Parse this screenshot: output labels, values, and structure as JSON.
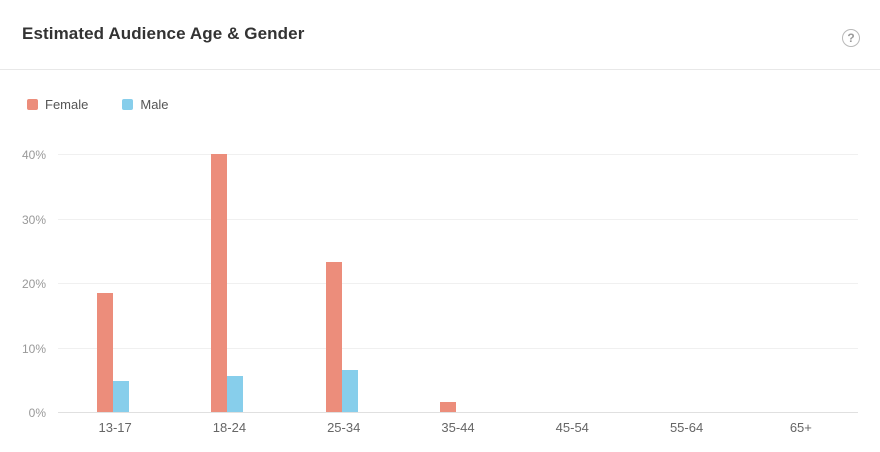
{
  "header": {
    "title": "Estimated Audience Age & Gender",
    "help_glyph": "?",
    "icons": {
      "help": "question-mark-circle-icon"
    }
  },
  "legend": [
    {
      "label": "Female",
      "color": "#ec8d7b"
    },
    {
      "label": "Male",
      "color": "#87ceeb"
    }
  ],
  "chart_data": {
    "type": "bar",
    "title": "Estimated Audience Age & Gender",
    "categories": [
      "13-17",
      "18-24",
      "25-34",
      "35-44",
      "45-54",
      "55-64",
      "65+"
    ],
    "series": [
      {
        "name": "Female",
        "color": "#ec8d7b",
        "values": [
          18.4,
          40.0,
          23.2,
          1.6,
          0,
          0,
          0
        ]
      },
      {
        "name": "Male",
        "color": "#87ceeb",
        "values": [
          4.8,
          5.6,
          6.5,
          0,
          0,
          0,
          0
        ]
      }
    ],
    "xlabel": "",
    "ylabel": "",
    "unit": "%",
    "y_ticks": [
      "0%",
      "10%",
      "20%",
      "30%",
      "40%"
    ],
    "y_tick_values": [
      0,
      10,
      20,
      30,
      40
    ],
    "ylim": [
      0,
      42
    ],
    "grid": "horizontal-only",
    "legend_position": "top-left",
    "colors": {
      "gridline": "#f0f0f0",
      "axis_line": "#e0e0e0",
      "y_tick_text": "#999999",
      "x_tick_text": "#666666",
      "title_text": "#333333",
      "legend_text": "#555555",
      "divider": "#e8e8e8"
    }
  }
}
